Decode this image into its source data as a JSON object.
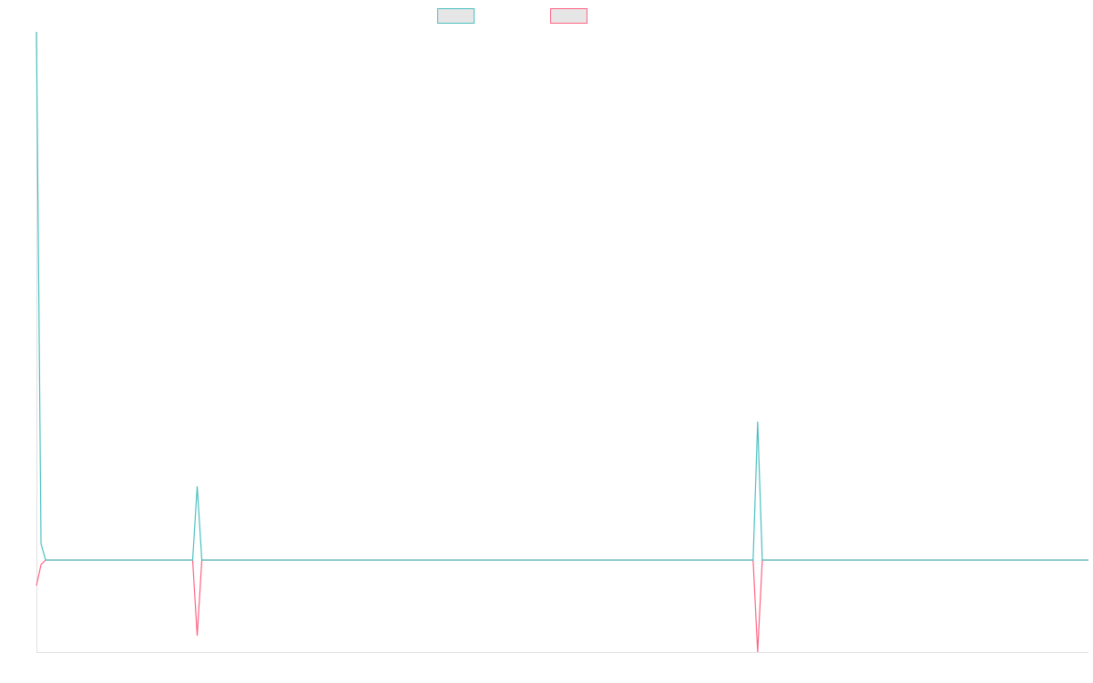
{
  "chart_data": {
    "type": "line",
    "x": [
      0,
      1,
      2,
      34,
      35,
      36,
      156,
      157,
      158,
      229
    ],
    "xlim": [
      0,
      229
    ],
    "ylim": [
      -101,
      580
    ],
    "series": [
      {
        "color": "#ff6384",
        "values": [
          -28,
          -5,
          0,
          0,
          -83,
          0,
          0,
          -101,
          0,
          0
        ]
      },
      {
        "color": "#4bc0c0",
        "values": [
          580,
          18,
          0,
          0,
          81,
          0,
          0,
          152,
          0,
          0
        ]
      }
    ]
  }
}
